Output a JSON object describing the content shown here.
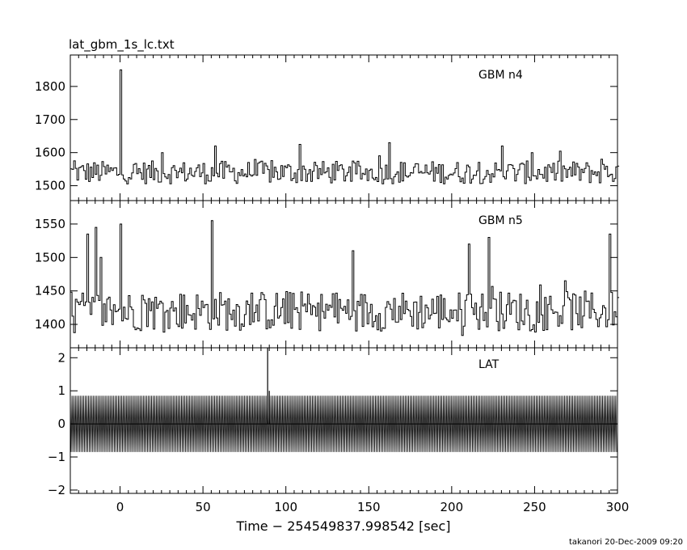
{
  "title": "lat_gbm_1s_lc.txt",
  "footer": "takanori 20-Dec-2009 09:20",
  "chart_data": [
    {
      "type": "line",
      "panel_label": "GBM n4",
      "xlim": [
        -30,
        300
      ],
      "ylim": [
        1455,
        1895
      ],
      "y_ticks": [
        1500,
        1600,
        1700,
        1800
      ],
      "y_tick_labels": [
        "1500",
        "1600",
        "1700",
        "1800"
      ],
      "series": [
        {
          "baseline": 1540,
          "noise": 35,
          "points": [
            [
              -28,
              1575
            ],
            [
              0,
              1850
            ],
            [
              2,
              1520
            ],
            [
              25,
              1600
            ],
            [
              57,
              1620
            ],
            [
              108,
              1625
            ],
            [
              162,
              1630
            ],
            [
              230,
              1620
            ],
            [
              248,
              1600
            ],
            [
              290,
              1580
            ]
          ],
          "low_clip": 1455
        }
      ]
    },
    {
      "type": "line",
      "panel_label": "GBM n5",
      "xlim": [
        -30,
        300
      ],
      "ylim": [
        1365,
        1585
      ],
      "y_ticks": [
        1400,
        1450,
        1500,
        1550
      ],
      "y_tick_labels": [
        "1400",
        "1450",
        "1500",
        "1550"
      ],
      "series": [
        {
          "baseline": 1420,
          "noise": 30,
          "points": [
            [
              -20,
              1535
            ],
            [
              -15,
              1545
            ],
            [
              -12,
              1500
            ],
            [
              0,
              1550
            ],
            [
              55,
              1555
            ],
            [
              140,
              1510
            ],
            [
              210,
              1520
            ],
            [
              222,
              1530
            ],
            [
              295,
              1535
            ]
          ],
          "low_clip": 1365
        }
      ]
    },
    {
      "type": "line",
      "panel_label": "LAT",
      "xlim": [
        -30,
        300
      ],
      "ylim": [
        -2.1,
        2.3
      ],
      "y_ticks": [
        -2,
        -1,
        0,
        1,
        2
      ],
      "y_tick_labels": [
        "−2",
        "−1",
        "0",
        "1",
        "2"
      ],
      "series": [
        {
          "baseline": 0,
          "oscillation_amplitude": 0.85,
          "spikes": [
            [
              89,
              2.3
            ],
            [
              90,
              1.0
            ]
          ]
        }
      ]
    }
  ],
  "x_axis": {
    "label": "Time − 254549837.998542 [sec]",
    "ticks": [
      0,
      50,
      100,
      150,
      200,
      250,
      300
    ],
    "tick_labels": [
      "0",
      "50",
      "100",
      "150",
      "200",
      "250",
      "300"
    ]
  }
}
